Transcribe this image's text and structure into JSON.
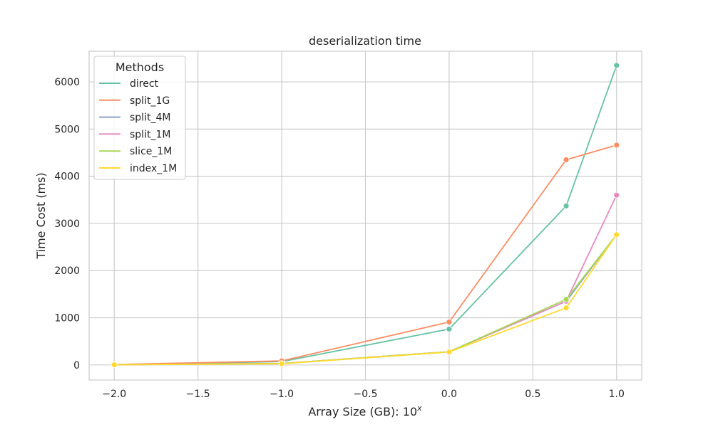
{
  "chart_data": {
    "type": "line",
    "title": "deserialization time",
    "xlabel": "Array Size (GB): 10",
    "xlabel_sup": "x",
    "ylabel": "Time Cost (ms)",
    "xlim": [
      -2.15,
      1.15
    ],
    "ylim": [
      -320,
      6650
    ],
    "xticks": [
      -2.0,
      -1.5,
      -1.0,
      -0.5,
      0.0,
      0.5,
      1.0
    ],
    "xtick_labels": [
      "−2.0",
      "−1.5",
      "−1.0",
      "−0.5",
      "0.0",
      "0.5",
      "1.0"
    ],
    "yticks": [
      0,
      1000,
      2000,
      3000,
      4000,
      5000,
      6000
    ],
    "ytick_labels": [
      "0",
      "1000",
      "2000",
      "3000",
      "4000",
      "5000",
      "6000"
    ],
    "grid": true,
    "legend": {
      "title": "Methods",
      "placement": "top-left"
    },
    "x": [
      -2.0,
      -1.0,
      0.0,
      0.699,
      1.0
    ],
    "series": [
      {
        "name": "direct",
        "color": "#66c2a5",
        "values": [
          5,
          70,
          760,
          3370,
          6350
        ]
      },
      {
        "name": "split_1G",
        "color": "#fc8d62",
        "values": [
          8,
          85,
          910,
          4350,
          4660
        ]
      },
      {
        "name": "split_4M",
        "color": "#8da0cb",
        "values": [
          4,
          30,
          280,
          1350,
          2760
        ]
      },
      {
        "name": "split_1M",
        "color": "#e78ac3",
        "values": [
          4,
          30,
          280,
          1350,
          3600
        ]
      },
      {
        "name": "slice_1M",
        "color": "#a6d854",
        "values": [
          4,
          30,
          280,
          1390,
          2760
        ]
      },
      {
        "name": "index_1M",
        "color": "#ffd92f",
        "values": [
          3,
          25,
          275,
          1210,
          2760
        ]
      }
    ]
  }
}
